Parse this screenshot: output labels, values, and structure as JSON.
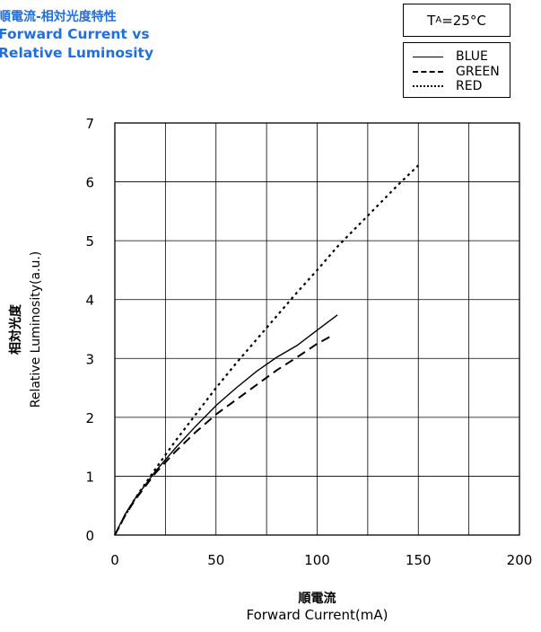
{
  "title": {
    "jp": "順電流-相対光度特性",
    "en_line1": "Forward Current vs",
    "en_line2": "Relative Luminosity"
  },
  "condition": {
    "t": "T",
    "sub": "A",
    "rest": "=25°C"
  },
  "colors": {
    "title": "#1f6fe0",
    "lines": "#000000",
    "grid": "#000000"
  },
  "chart_data": {
    "type": "line",
    "xlabel_jp": "順電流",
    "xlabel": "Forward Current(mA)",
    "ylabel_jp": "相対光度",
    "ylabel": "Relative Luminosity(a.u.)",
    "xlim": [
      0,
      200
    ],
    "ylim": [
      0,
      7
    ],
    "xticks": [
      0,
      50,
      100,
      150,
      200
    ],
    "yticks": [
      0,
      1,
      2,
      3,
      4,
      5,
      6,
      7
    ],
    "grid": true,
    "legend_position": "top-right",
    "series": [
      {
        "name": "BLUE",
        "style": "solid",
        "x": [
          0,
          5,
          10,
          20,
          30,
          40,
          50,
          60,
          70,
          80,
          90,
          100,
          110
        ],
        "y": [
          0,
          0.35,
          0.62,
          1.08,
          1.48,
          1.85,
          2.2,
          2.5,
          2.78,
          3.02,
          3.22,
          3.48,
          3.74
        ]
      },
      {
        "name": "GREEN",
        "style": "dashed",
        "x": [
          0,
          5,
          10,
          20,
          30,
          40,
          50,
          60,
          70,
          80,
          90,
          100,
          108
        ],
        "y": [
          0,
          0.33,
          0.6,
          1.05,
          1.42,
          1.75,
          2.05,
          2.3,
          2.55,
          2.8,
          3.02,
          3.25,
          3.4
        ]
      },
      {
        "name": "RED",
        "style": "dotted",
        "x": [
          0,
          5,
          10,
          20,
          30,
          40,
          50,
          60,
          70,
          80,
          90,
          100,
          110,
          120,
          130,
          140,
          150
        ],
        "y": [
          0,
          0.33,
          0.62,
          1.12,
          1.6,
          2.05,
          2.5,
          2.92,
          3.32,
          3.72,
          4.12,
          4.5,
          4.9,
          5.25,
          5.6,
          5.95,
          6.28
        ]
      }
    ]
  }
}
